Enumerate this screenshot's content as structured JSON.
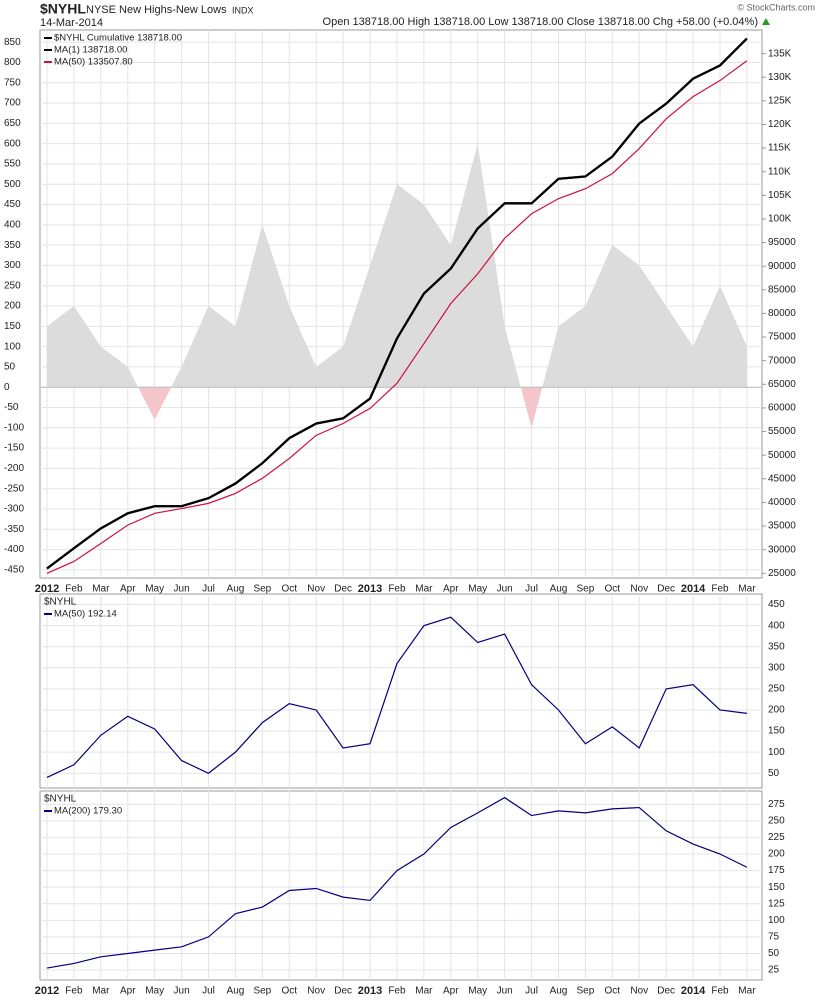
{
  "header": {
    "symbol": "$NYHL",
    "name": "NYSE New Highs-New Lows",
    "exchange": "INDX",
    "date": "14-Mar-2014",
    "quote": "Open 138718.00  High 138718.00  Low 138718.00  Close 138718.00  Chg +58.00 (+0.04%)",
    "source": "© StockCharts.com"
  },
  "chart_data": [
    {
      "type": "line",
      "grid": true,
      "legend": "top-left",
      "show_x_labels": true,
      "categories": [
        "2012",
        "Feb",
        "Mar",
        "Apr",
        "May",
        "Jun",
        "Jul",
        "Aug",
        "Sep",
        "Oct",
        "Nov",
        "Dec",
        "2013",
        "Feb",
        "Mar",
        "Apr",
        "May",
        "Jun",
        "Jul",
        "Aug",
        "Sep",
        "Oct",
        "Nov",
        "Dec",
        "2014",
        "Feb",
        "Mar"
      ],
      "ylim": [
        -470,
        880
      ],
      "yticks": [
        -450,
        -400,
        -350,
        -300,
        -250,
        -200,
        -150,
        -100,
        -50,
        0,
        50,
        100,
        150,
        200,
        250,
        300,
        350,
        400,
        450,
        500,
        550,
        600,
        650,
        700,
        750,
        800,
        850
      ],
      "y2lim": [
        24000,
        140000
      ],
      "y2ticks": [
        25000,
        30000,
        35000,
        40000,
        45000,
        50000,
        55000,
        60000,
        65000,
        70000,
        75000,
        80000,
        85000,
        90000,
        95000,
        {
          "value": 100000,
          "label": "100K"
        },
        {
          "value": 105000,
          "label": "105K"
        },
        {
          "value": 110000,
          "label": "110K"
        },
        {
          "value": 115000,
          "label": "115K"
        },
        {
          "value": 120000,
          "label": "120K"
        },
        {
          "value": 125000,
          "label": "125K"
        },
        {
          "value": 130000,
          "label": "130K"
        },
        {
          "value": 135000,
          "label": "135K"
        }
      ],
      "series": [
        {
          "kind": "area",
          "color": "#dcdcdc",
          "negative_color": "#f4c6cc",
          "axis": "y",
          "values": [
            150,
            200,
            100,
            50,
            -80,
            50,
            200,
            150,
            400,
            200,
            50,
            100,
            300,
            500,
            450,
            350,
            600,
            150,
            -100,
            150,
            200,
            350,
            300,
            200,
            100,
            250,
            100
          ]
        },
        {
          "name": "$NYHL Cumulative 138718.00",
          "color": "#000000",
          "axis": "y2",
          "width": 2.2,
          "values": [
            26000,
            30300,
            34500,
            37700,
            39200,
            39200,
            40900,
            44000,
            48300,
            53600,
            56700,
            57800,
            62000,
            74700,
            84200,
            89500,
            98000,
            103300,
            103300,
            108500,
            109000,
            113200,
            120200,
            124400,
            129700,
            132500,
            138200
          ]
        },
        {
          "name": "MA(1) 138718.00",
          "color": "#000000",
          "axis": "y2",
          "width": 2.2,
          "values": [
            26000,
            30300,
            34500,
            37700,
            39200,
            39200,
            40900,
            44000,
            48300,
            53600,
            56700,
            57800,
            62000,
            74700,
            84200,
            89500,
            98000,
            103300,
            103300,
            108500,
            109000,
            113200,
            120200,
            124400,
            129700,
            132500,
            138200
          ]
        },
        {
          "name": "MA(50) 133507.80",
          "color": "#d0103a",
          "axis": "y2",
          "width": 1.2,
          "values": [
            25000,
            27500,
            31300,
            35200,
            37700,
            38700,
            39800,
            41900,
            45100,
            49300,
            54200,
            56700,
            59900,
            65200,
            73600,
            82100,
            88400,
            95900,
            101100,
            104300,
            106400,
            109600,
            114900,
            121200,
            125900,
            129300,
            133500
          ]
        }
      ]
    },
    {
      "type": "line",
      "grid": true,
      "legend": "top-left",
      "show_x_labels": false,
      "label": "$NYHL",
      "categories": [
        "2012",
        "Feb",
        "Mar",
        "Apr",
        "May",
        "Jun",
        "Jul",
        "Aug",
        "Sep",
        "Oct",
        "Nov",
        "Dec",
        "2013",
        "Feb",
        "Mar",
        "Apr",
        "May",
        "Jun",
        "Jul",
        "Aug",
        "Sep",
        "Oct",
        "Nov",
        "Dec",
        "2014",
        "Feb",
        "Mar"
      ],
      "ylim": [
        15,
        475
      ],
      "yticks": [
        50,
        100,
        150,
        200,
        250,
        300,
        350,
        400,
        450
      ],
      "series": [
        {
          "name": "MA(50) 192.14",
          "color": "#000080",
          "axis": "y",
          "width": 1.2,
          "values": [
            40,
            70,
            140,
            185,
            155,
            80,
            50,
            100,
            170,
            215,
            200,
            110,
            120,
            310,
            400,
            420,
            360,
            380,
            260,
            200,
            120,
            160,
            110,
            250,
            260,
            200,
            192
          ]
        }
      ]
    },
    {
      "type": "line",
      "grid": true,
      "legend": "top-left",
      "show_x_labels": true,
      "label": "$NYHL",
      "categories": [
        "2012",
        "Feb",
        "Mar",
        "Apr",
        "May",
        "Jun",
        "Jul",
        "Aug",
        "Sep",
        "Oct",
        "Nov",
        "Dec",
        "2013",
        "Feb",
        "Mar",
        "Apr",
        "May",
        "Jun",
        "Jul",
        "Aug",
        "Sep",
        "Oct",
        "Nov",
        "Dec",
        "2014",
        "Feb",
        "Mar"
      ],
      "ylim": [
        10,
        295
      ],
      "yticks": [
        25,
        50,
        75,
        100,
        125,
        150,
        175,
        200,
        225,
        250,
        275
      ],
      "series": [
        {
          "name": "MA(200) 179.30",
          "color": "#000080",
          "axis": "y",
          "width": 1.2,
          "values": [
            28,
            35,
            45,
            50,
            55,
            60,
            75,
            110,
            120,
            145,
            148,
            135,
            130,
            175,
            200,
            240,
            262,
            285,
            258,
            265,
            262,
            268,
            270,
            235,
            215,
            200,
            180
          ]
        }
      ]
    }
  ]
}
